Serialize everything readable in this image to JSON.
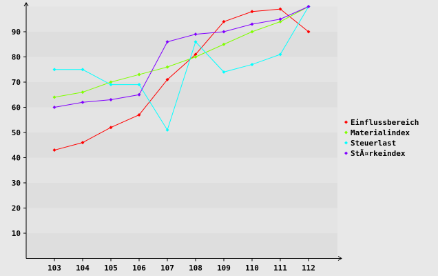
{
  "chart_data": {
    "type": "line",
    "categories": [
      "103",
      "104",
      "105",
      "106",
      "107",
      "108",
      "109",
      "110",
      "111",
      "112"
    ],
    "ylim": [
      0,
      100
    ],
    "yticks": [
      10,
      20,
      30,
      40,
      50,
      60,
      70,
      80,
      90
    ],
    "grid": "horizontal bands",
    "legend": "right",
    "series": [
      {
        "name": "Einflussbereich",
        "color": "#ff0000",
        "values": [
          43,
          46,
          52,
          57,
          71,
          81,
          94,
          98,
          99,
          90
        ]
      },
      {
        "name": "Materialindex",
        "color": "#80ff00",
        "values": [
          64,
          66,
          70,
          73,
          76,
          80,
          85,
          90,
          94,
          100
        ]
      },
      {
        "name": "Steuerlast",
        "color": "#00ffff",
        "values": [
          75,
          75,
          69,
          69,
          51,
          86,
          74,
          77,
          81,
          100
        ]
      },
      {
        "name": "StÃ¤rkeindex",
        "color": "#8000ff",
        "values": [
          60,
          62,
          63,
          65,
          86,
          89,
          90,
          93,
          95,
          100
        ]
      }
    ]
  }
}
